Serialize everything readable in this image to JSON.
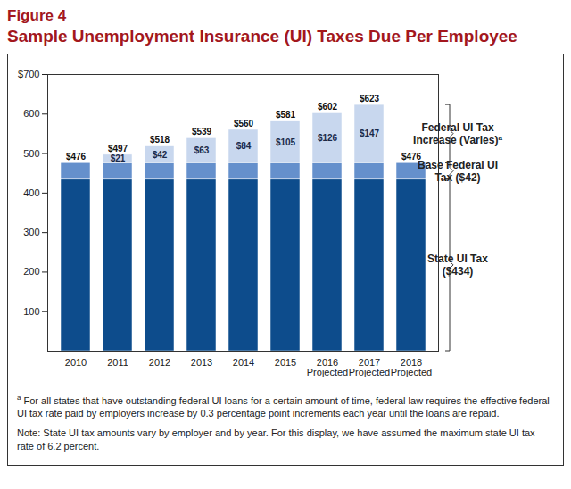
{
  "chart_data": {
    "type": "bar",
    "title": "Figure 4",
    "subtitle": "Sample Unemployment Insurance (UI) Taxes Due Per Employee",
    "categories": [
      "2010",
      "2011",
      "2012",
      "2013",
      "2014",
      "2015",
      "2016\nProjected",
      "2017\nProjected",
      "2018\nProjected"
    ],
    "stacked": true,
    "data_labels": true,
    "series": [
      {
        "name": "State UI Tax ($434)",
        "color": "#0d4c8c",
        "values": [
          434,
          434,
          434,
          434,
          434,
          434,
          434,
          434,
          434
        ]
      },
      {
        "name": "Base Federal UI Tax ($42)",
        "color": "#6590cc",
        "values": [
          42,
          42,
          42,
          42,
          42,
          42,
          42,
          42,
          42
        ]
      },
      {
        "name": "Federal UI Tax Increase (Varies)",
        "note_mark": "a",
        "color": "#c8d7ee",
        "values": [
          0,
          21,
          42,
          63,
          84,
          105,
          126,
          147,
          0
        ],
        "value_labels": [
          null,
          "$21",
          "$42",
          "$63",
          "$84",
          "$105",
          "$126",
          "$147",
          null
        ]
      }
    ],
    "totals": [
      476,
      497,
      518,
      539,
      560,
      581,
      602,
      623,
      476
    ],
    "total_labels": [
      "$476",
      "$497",
      "$518",
      "$539",
      "$560",
      "$581",
      "$602",
      "$623",
      "$476"
    ],
    "ylim": [
      0,
      700
    ],
    "yticks": [
      100,
      200,
      300,
      400,
      500,
      600,
      {
        "value": 700,
        "label": "$700"
      }
    ],
    "footnotes": [
      {
        "mark": "a",
        "text": "For all states that have outstanding federal UI loans for a certain amount of time, federal law requires the effective federal UI tax rate paid by employers increase by 0.3 percentage point increments each year until the loans are repaid."
      }
    ],
    "note": "Note: State UI tax amounts vary by employer and by year. For this display, we have assumed the maximum state UI tax rate of 6.2 percent."
  }
}
